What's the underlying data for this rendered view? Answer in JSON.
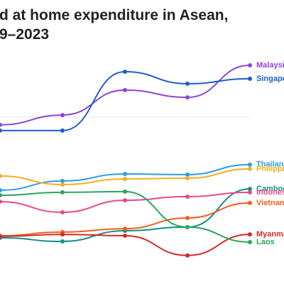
{
  "chart_data": {
    "type": "line",
    "title_lines": [
      "d at home expenditure in Asean,",
      "9–2023"
    ],
    "categories": [
      null,
      null,
      null,
      null,
      null
    ],
    "ylim": [
      0,
      100
    ],
    "series": [
      {
        "name": "Malaysia",
        "color": "#8e44d8",
        "values": [
          63.8,
          68.1,
          79.1,
          75.9,
          90.0
        ]
      },
      {
        "name": "Singapore",
        "color": "#1f5fc8",
        "values": [
          61.3,
          61.3,
          87.2,
          81.9,
          84.1
        ]
      },
      {
        "name": "Thailand",
        "color": "#2d9be8",
        "values": [
          35.0,
          39.1,
          42.2,
          41.9,
          46.3
        ]
      },
      {
        "name": "Philippines",
        "color": "#f0b020",
        "values": [
          41.3,
          37.5,
          40.0,
          40.3,
          44.4
        ]
      },
      {
        "name": "Cambodia",
        "color": "#138f86",
        "values": [
          14.1,
          12.5,
          17.2,
          18.8,
          35.6
        ]
      },
      {
        "name": "Indonesia",
        "color": "#e84a8a",
        "values": [
          30.0,
          25.3,
          30.6,
          32.2,
          34.1
        ]
      },
      {
        "name": "Vietnam",
        "color": "#f06020",
        "values": [
          15.0,
          16.6,
          18.1,
          22.8,
          29.4
        ]
      },
      {
        "name": "Myanmar",
        "color": "#d42a2a",
        "values": [
          14.7,
          15.6,
          15.0,
          6.3,
          15.6
        ]
      },
      {
        "name": "Laos",
        "color": "#2aa65a",
        "values": [
          32.8,
          34.1,
          34.4,
          18.8,
          12.2
        ]
      }
    ]
  }
}
